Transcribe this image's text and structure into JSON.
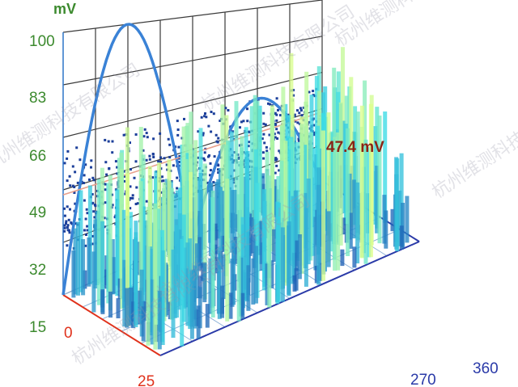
{
  "chart_data": {
    "type": "3d-bar-scatter",
    "title": "",
    "ylabel": "mV",
    "yticks": [
      "100",
      "83",
      "66",
      "49",
      "32",
      "15"
    ],
    "ylim": [
      15,
      100
    ],
    "xlim": [
      0,
      360
    ],
    "xticks_bottom": [
      "270",
      "360"
    ],
    "depth_ticks": [
      "0",
      "25"
    ],
    "sine_series": {
      "peak": 100,
      "min": 15,
      "peak_phase": 90
    },
    "threshold": {
      "value": 47.4,
      "label": "47.4 mV",
      "color": "#e8a08c"
    },
    "colors": {
      "sine": "#3a82d6",
      "scatter": "#1c3f9a",
      "grid": "#3a3a3a",
      "bars_low": "#1e5fb5",
      "bars_high": "#dfff8a"
    }
  },
  "watermark": "杭州维测科技有限公司"
}
